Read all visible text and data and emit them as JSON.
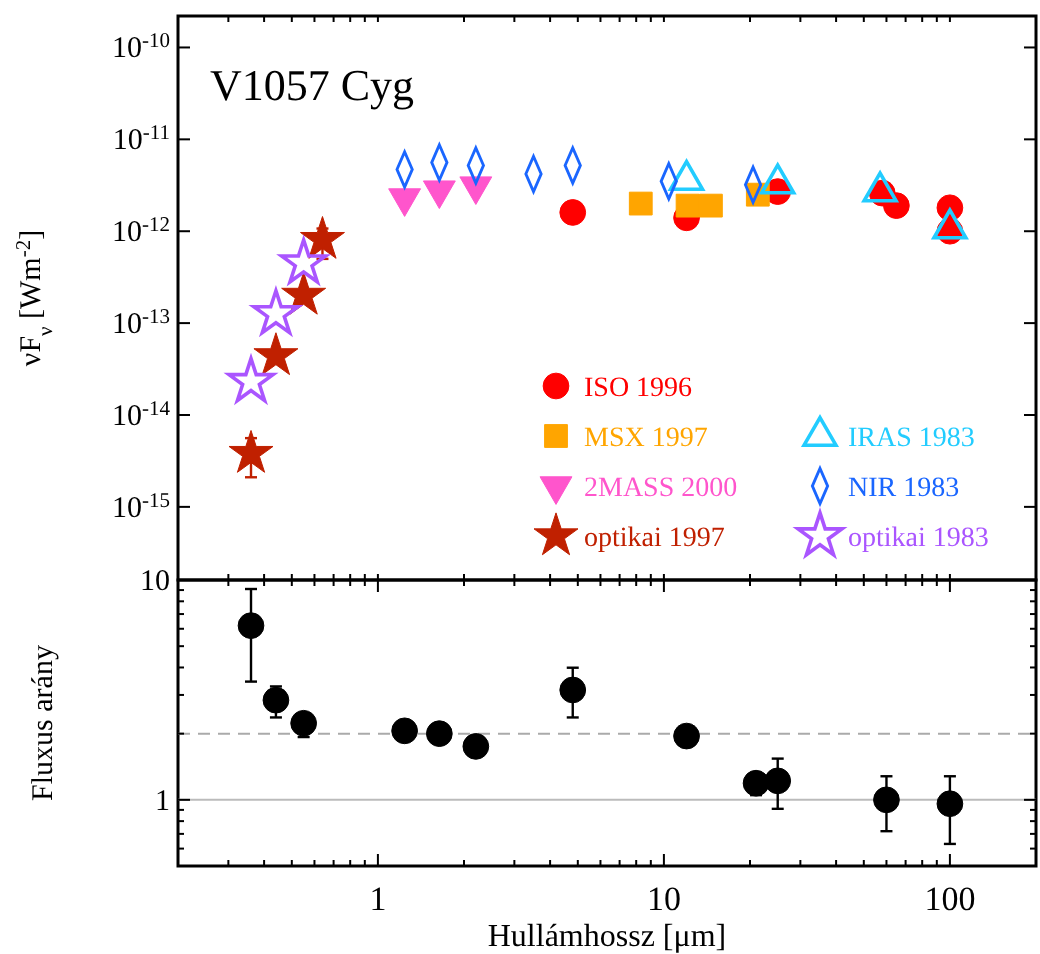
{
  "chart_data": [
    {
      "type": "scatter",
      "title": "V1057 Cyg",
      "ylabel": "νF$_{ν}$ [Wm$^{-2}$]",
      "log": "xy",
      "tick_labels": "y",
      "legend": "bottom right",
      "xlim": [
        0.2,
        200
      ],
      "xticks": [
        {
          "value": 0.3,
          "label": null
        },
        {
          "value": 0.4,
          "label": null
        },
        {
          "value": 0.5,
          "label": null
        },
        {
          "value": 0.6,
          "label": null
        },
        {
          "value": 0.7,
          "label": null
        },
        {
          "value": 0.8,
          "label": null
        },
        {
          "value": 0.9,
          "label": null
        },
        {
          "value": 1,
          "label": null
        },
        {
          "value": 2,
          "label": null
        },
        {
          "value": 3,
          "label": null
        },
        {
          "value": 4,
          "label": null
        },
        {
          "value": 5,
          "label": null
        },
        {
          "value": 6,
          "label": null
        },
        {
          "value": 7,
          "label": null
        },
        {
          "value": 8,
          "label": null
        },
        {
          "value": 9,
          "label": null
        },
        {
          "value": 10,
          "label": null
        },
        {
          "value": 20,
          "label": null
        },
        {
          "value": 30,
          "label": null
        },
        {
          "value": 40,
          "label": null
        },
        {
          "value": 50,
          "label": null
        },
        {
          "value": 60,
          "label": null
        },
        {
          "value": 70,
          "label": null
        },
        {
          "value": 80,
          "label": null
        },
        {
          "value": 90,
          "label": null
        },
        {
          "value": 100,
          "label": null
        }
      ],
      "ylim": [
        1.6e-16,
        2.2e-10
      ],
      "yticks": [
        {
          "value": 1e-15,
          "label": "10$^{-15}$"
        },
        {
          "value": 1e-14,
          "label": "10$^{-14}$"
        },
        {
          "value": 1e-13,
          "label": "10$^{-13}$"
        },
        {
          "value": 1e-12,
          "label": "10$^{-12}$"
        },
        {
          "value": 1e-11,
          "label": "10$^{-11}$"
        },
        {
          "value": 1e-10,
          "label": "10$^{-10}$"
        }
      ],
      "series": [
        {
          "name": "ISO 1996",
          "color": "#ff0000",
          "marker": "circle",
          "x": [
            4.8,
            12,
            25,
            58,
            65,
            100,
            100
          ],
          "values": [
            1.6e-12,
            1.4e-12,
            2.7e-12,
            2.6e-12,
            1.9e-12,
            1.8e-12,
            1e-12
          ]
        },
        {
          "name": "MSX 1997",
          "color": "#ffa500",
          "marker": "square",
          "x": [
            8.3,
            12.1,
            14.6,
            21.3
          ],
          "values": [
            2e-12,
            1.9e-12,
            1.9e-12,
            2.5e-12
          ]
        },
        {
          "name": "2MASS 2000",
          "color": "#ff55cc",
          "marker": "triangle_down",
          "x": [
            1.24,
            1.64,
            2.2
          ],
          "values": [
            2.3e-12,
            2.8e-12,
            3.1e-12
          ]
        },
        {
          "name": "optikai 1997",
          "color": "#c02000",
          "marker": "star",
          "x": [
            0.36,
            0.44,
            0.55,
            0.64
          ],
          "values": [
            3.8e-15,
            4.4e-14,
            2e-13,
            8.1e-13
          ],
          "errors": [
            [
              2.1e-15,
              5.6e-15
            ],
            null,
            null,
            [
              5e-13,
              1.07e-12
            ]
          ]
        },
        {
          "name": "IRAS 1983",
          "color": "#22ccff",
          "marker": "triangle_open",
          "x": [
            12,
            25,
            57,
            100
          ],
          "values": [
            3.6e-12,
            3.3e-12,
            2.7e-12,
            1.07e-12
          ]
        },
        {
          "name": "NIR 1983",
          "color": "#1a66ff",
          "marker": "diamond_open",
          "x": [
            1.24,
            1.64,
            2.2,
            3.5,
            4.8,
            10.4,
            20.5
          ],
          "values": [
            4.7e-12,
            5.6e-12,
            5.2e-12,
            4.2e-12,
            5.2e-12,
            3.5e-12,
            3.2e-12
          ]
        },
        {
          "name": "optikai 1983",
          "color": "#aa55ff",
          "marker": "star_open",
          "x": [
            0.36,
            0.44,
            0.55
          ],
          "values": [
            2.3e-14,
            1.26e-13,
            4.5e-13
          ]
        }
      ]
    },
    {
      "type": "scatter",
      "xlabel": "Hullámhossz [μm]",
      "ylabel": "Fluxus arány",
      "log": "xy",
      "xlim": [
        0.2,
        200
      ],
      "xticks": [
        {
          "value": 0.3,
          "label": null
        },
        {
          "value": 0.4,
          "label": null
        },
        {
          "value": 0.5,
          "label": null
        },
        {
          "value": 0.6,
          "label": null
        },
        {
          "value": 0.7,
          "label": null
        },
        {
          "value": 0.8,
          "label": null
        },
        {
          "value": 0.9,
          "label": null
        },
        1,
        {
          "value": 2,
          "label": null
        },
        {
          "value": 3,
          "label": null
        },
        {
          "value": 4,
          "label": null
        },
        {
          "value": 5,
          "label": null
        },
        {
          "value": 6,
          "label": null
        },
        {
          "value": 7,
          "label": null
        },
        {
          "value": 8,
          "label": null
        },
        {
          "value": 9,
          "label": null
        },
        10,
        {
          "value": 20,
          "label": null
        },
        {
          "value": 30,
          "label": null
        },
        {
          "value": 40,
          "label": null
        },
        {
          "value": 50,
          "label": null
        },
        {
          "value": 60,
          "label": null
        },
        {
          "value": 70,
          "label": null
        },
        {
          "value": 80,
          "label": null
        },
        {
          "value": 90,
          "label": null
        },
        100
      ],
      "ylim": [
        0.5,
        10
      ],
      "yticks": [
        {
          "value": 0.6,
          "label": null
        },
        {
          "value": 0.7,
          "label": null
        },
        {
          "value": 0.8,
          "label": null
        },
        {
          "value": 0.9,
          "label": null
        },
        1,
        {
          "value": 2,
          "label": null
        },
        {
          "value": 3,
          "label": null
        },
        {
          "value": 4,
          "label": null
        },
        {
          "value": 5,
          "label": null
        },
        {
          "value": 6,
          "label": null
        },
        {
          "value": 7,
          "label": null
        },
        {
          "value": 8,
          "label": null
        },
        {
          "value": 9,
          "label": null
        },
        10
      ],
      "ref_lines": [
        {
          "axis": "y",
          "value": 1,
          "color": "#bbbbbb",
          "line_style": "solid"
        },
        {
          "axis": "y",
          "value": 2,
          "color": "#aaaaaa",
          "line_style": "dashed"
        }
      ],
      "series": [
        {
          "color": "#000000",
          "marker": "circle",
          "x": [
            0.36,
            0.44,
            0.55,
            1.24,
            1.64,
            2.2,
            4.8,
            12,
            21,
            25,
            60,
            100
          ],
          "values": [
            6.2,
            2.84,
            2.23,
            2.06,
            2.0,
            1.75,
            3.16,
            1.95,
            1.19,
            1.22,
            1.0,
            0.96
          ],
          "errors": [
            [
              3.45,
              9.1
            ],
            [
              2.37,
              3.28
            ],
            [
              1.93,
              2.42
            ],
            null,
            null,
            null,
            [
              2.37,
              3.99
            ],
            null,
            [
              1.05,
              1.29
            ],
            [
              0.91,
              1.54
            ],
            [
              0.72,
              1.28
            ],
            [
              0.63,
              1.28
            ]
          ]
        }
      ]
    }
  ]
}
